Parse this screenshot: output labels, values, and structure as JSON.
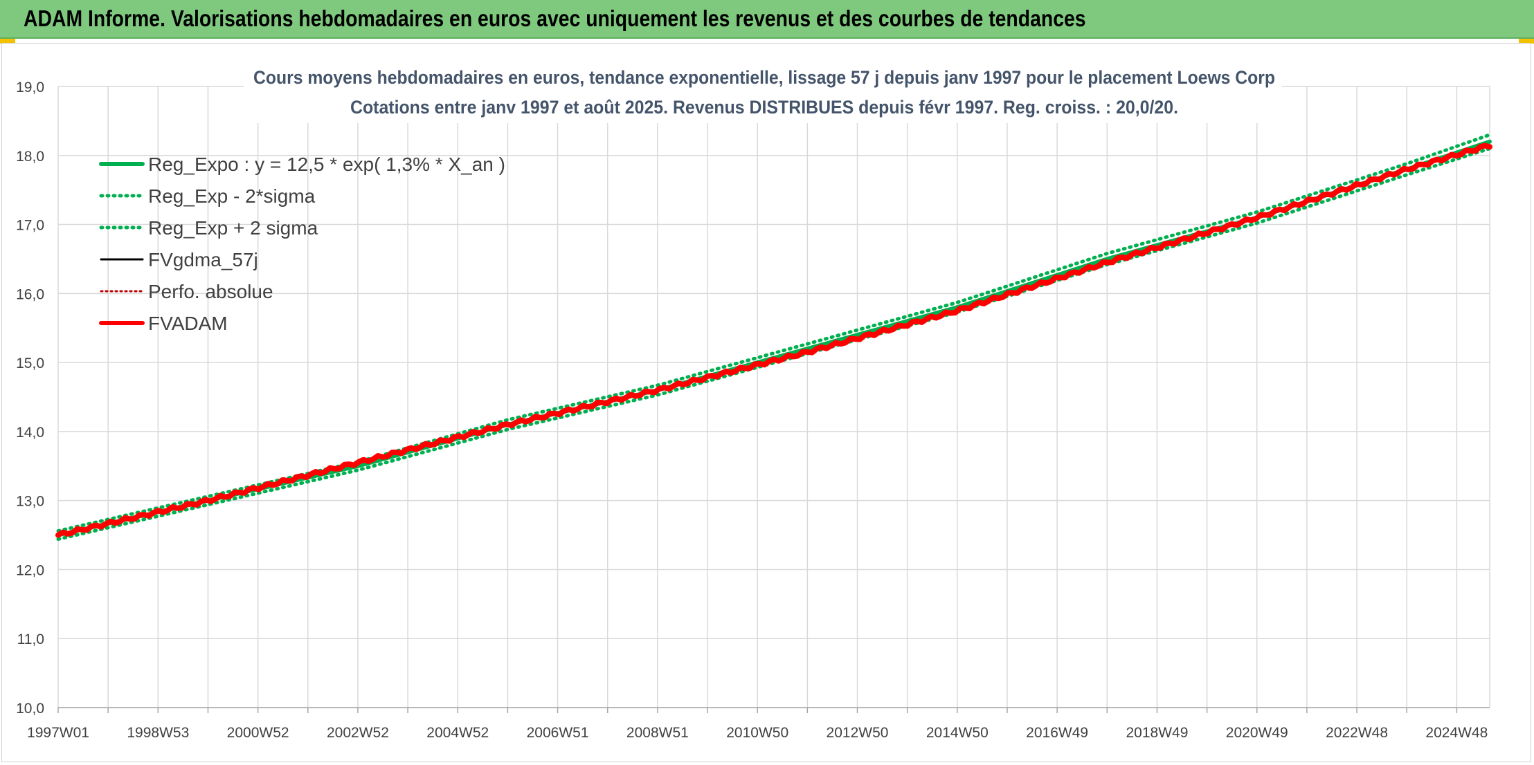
{
  "banner": {
    "title": "ADAM Informe. Valorisations hebdomadaires en euros avec uniquement les revenus et des courbes de tendances"
  },
  "colors": {
    "banner_bg": "#7fc97f",
    "reg_green": "#00b050",
    "fvadam_red": "#ff0000",
    "perfo_red": "#c00000",
    "fvgdma_black": "#000000",
    "grid": "#d9d9d9",
    "title_text": "#44546a"
  },
  "chart_data": {
    "type": "line",
    "title": "Cours moyens hebdomadaires en euros, tendance exponentielle, lissage 57 j depuis janv 1997 pour le placement Loews Corp",
    "subtitle": "Cotations entre janv 1997 et août 2025. Revenus DISTRIBUES depuis févr 1997. Reg. croiss. : 20,0/20.",
    "xlabel": "",
    "ylabel": "",
    "ylim": [
      10,
      19
    ],
    "yticks": [
      "10,0",
      "11,0",
      "12,0",
      "13,0",
      "14,0",
      "15,0",
      "16,0",
      "17,0",
      "18,0",
      "19,0"
    ],
    "xticks": [
      "1997W01",
      "1998W53",
      "2000W52",
      "2002W52",
      "2004W52",
      "2006W51",
      "2008W51",
      "2010W50",
      "2012W50",
      "2014W50",
      "2016W49",
      "2018W49",
      "2020W49",
      "2022W48",
      "2024W48"
    ],
    "x_range_years": [
      1997.0,
      2025.66
    ],
    "grid": true,
    "legend_position": "top-left",
    "series": [
      {
        "name": "Reg_Expo : y = 12,5 * exp( 1,3% *  X_an )",
        "style": "solid-green",
        "x": [
          1997,
          2000,
          2003,
          2006,
          2009,
          2012,
          2015,
          2018,
          2021,
          2024,
          2025.66
        ],
        "values": [
          12.5,
          13.0,
          13.5,
          14.1,
          14.6,
          15.2,
          15.8,
          16.5,
          17.1,
          17.8,
          18.2
        ]
      },
      {
        "name": "Reg_Exp - 2*sigma",
        "style": "dotted-green",
        "x": [
          1997,
          2000,
          2003,
          2006,
          2009,
          2012,
          2015,
          2018,
          2021,
          2024,
          2025.66
        ],
        "values": [
          12.44,
          12.94,
          13.44,
          14.03,
          14.53,
          15.13,
          15.73,
          16.42,
          17.02,
          17.72,
          18.1
        ]
      },
      {
        "name": "Reg_Exp + 2 sigma",
        "style": "dotted-green",
        "x": [
          1997,
          2000,
          2003,
          2006,
          2009,
          2012,
          2015,
          2018,
          2021,
          2024,
          2025.66
        ],
        "values": [
          12.56,
          13.06,
          13.56,
          14.17,
          14.67,
          15.27,
          15.87,
          16.58,
          17.18,
          17.88,
          18.3
        ]
      },
      {
        "name": "FVgdma_57j",
        "style": "solid-black",
        "x": [
          1997,
          2000,
          2003,
          2006,
          2009,
          2012,
          2015,
          2018,
          2021,
          2024,
          2025.66
        ],
        "values": [
          12.5,
          13.0,
          13.55,
          14.1,
          14.6,
          15.15,
          15.75,
          16.45,
          17.1,
          17.8,
          18.15
        ]
      },
      {
        "name": "Perfo. absolue",
        "style": "dotted-red",
        "x": [
          1997,
          2000,
          2003,
          2006,
          2009,
          2012,
          2015,
          2018,
          2021,
          2024,
          2025.66
        ],
        "values": [
          12.5,
          13.0,
          13.55,
          14.1,
          14.6,
          15.15,
          15.75,
          16.45,
          17.1,
          17.8,
          18.15
        ]
      },
      {
        "name": "FVADAM",
        "style": "solid-red",
        "x": [
          1997,
          2000,
          2003,
          2006,
          2009,
          2012,
          2015,
          2018,
          2021,
          2024,
          2025.66
        ],
        "values": [
          12.5,
          13.0,
          13.55,
          14.1,
          14.6,
          15.15,
          15.75,
          16.45,
          17.1,
          17.8,
          18.15
        ]
      }
    ]
  }
}
